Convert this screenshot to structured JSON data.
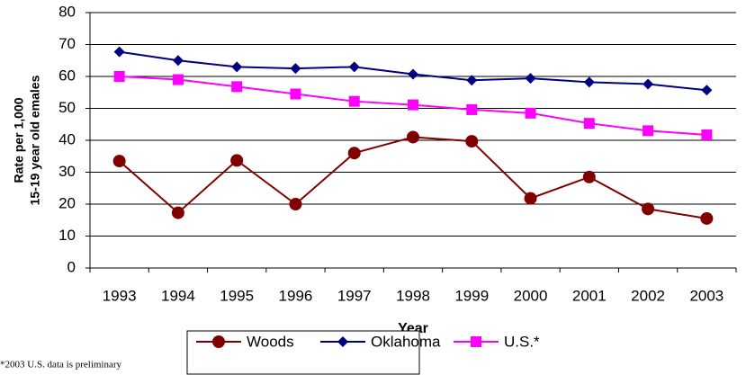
{
  "chart_data": {
    "type": "line",
    "y_label_lines": [
      "Rate per 1,000",
      "15-19 year old emales"
    ],
    "x_label": "Year",
    "note": "*2003 U.S. data is preliminary",
    "categories": [
      "1993",
      "1994",
      "1995",
      "1996",
      "1997",
      "1998",
      "1999",
      "2000",
      "2001",
      "2002",
      "2003"
    ],
    "series": [
      {
        "name": "Woods",
        "color": "#800000",
        "marker": "circle",
        "values": [
          33.5,
          17.3,
          33.7,
          20,
          36,
          41,
          39.7,
          21.8,
          28.5,
          18.5,
          15.5
        ]
      },
      {
        "name": "Oklahoma",
        "color": "#000080",
        "marker": "diamond",
        "values": [
          67.7,
          65,
          63,
          62.5,
          63,
          60.7,
          58.8,
          59.4,
          58.2,
          57.6,
          55.7
        ]
      },
      {
        "name": "U.S.*",
        "color": "#ff00ff",
        "marker": "square",
        "values": [
          60,
          59,
          56.8,
          54.5,
          52.2,
          51.1,
          49.6,
          48.5,
          45.3,
          43,
          41.7
        ]
      }
    ],
    "ylim": [
      0,
      80
    ],
    "yticks": [
      0,
      10,
      20,
      30,
      40,
      50,
      60,
      70,
      80
    ],
    "grid": true
  }
}
